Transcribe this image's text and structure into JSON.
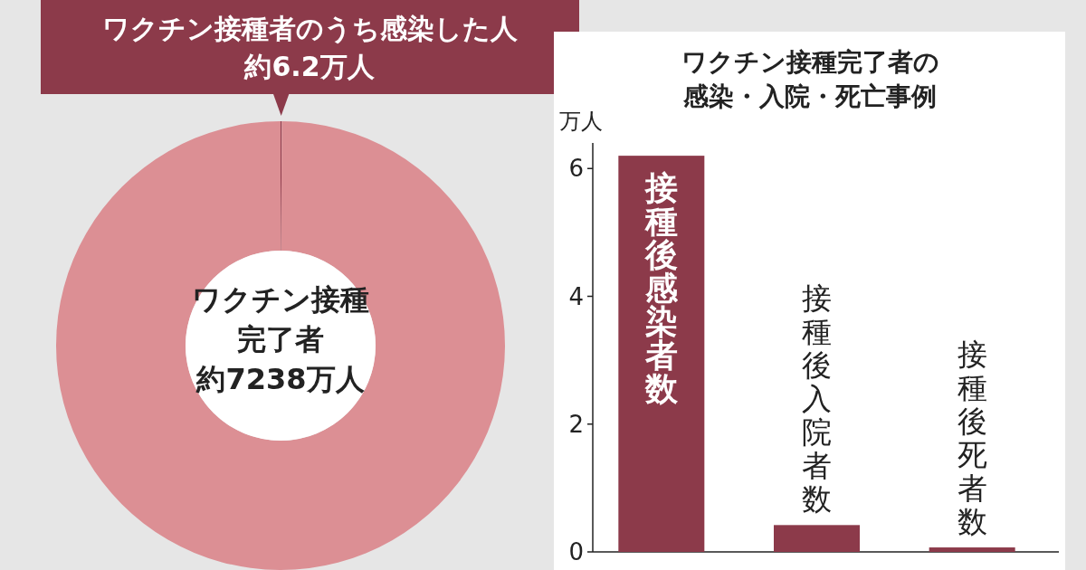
{
  "chart_data": [
    {
      "type": "donut",
      "categories": [
        "ワクチン接種者のうち感染した人",
        "ワクチン接種完了者"
      ],
      "values": [
        6.2,
        7238
      ],
      "value_labels": [
        "約6.2万人",
        "約7238万人"
      ],
      "colors": [
        "#8c3a4a",
        "#dc8f94"
      ]
    },
    {
      "type": "bar",
      "title": "ワクチン接種完了者の感染・入院・死亡事例",
      "ylabel": "万人",
      "categories": [
        "接種後感染者数",
        "接種後入院者数",
        "接種後死者数"
      ],
      "values": [
        6.2,
        0.42,
        0.07
      ],
      "color": "#8c3a4a",
      "ylim": [
        0,
        6.4
      ],
      "yticks": [
        0,
        2,
        4,
        6
      ],
      "grid": false
    }
  ]
}
